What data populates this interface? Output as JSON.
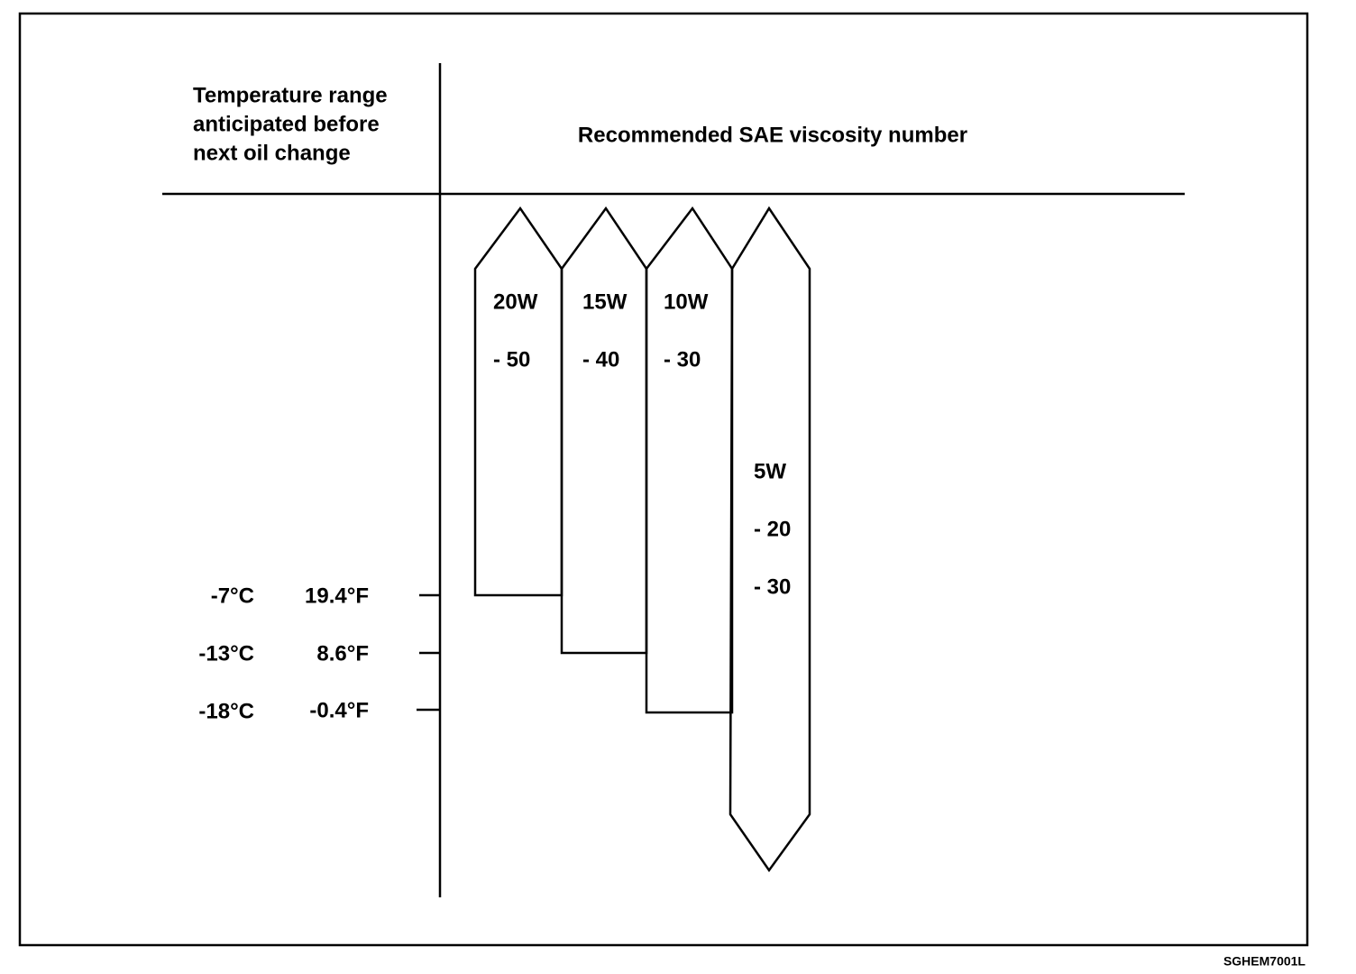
{
  "header": {
    "left": [
      "Temperature range",
      "anticipated before",
      "next oil change"
    ],
    "right": "Recommended SAE viscosity number"
  },
  "temperatures": [
    {
      "celsius": "-7°C",
      "fahrenheit": "19.4°F"
    },
    {
      "celsius": "-13°C",
      "fahrenheit": "8.6°F"
    },
    {
      "celsius": "-18°C",
      "fahrenheit": "-0.4°F"
    }
  ],
  "grades": [
    {
      "lines": [
        "20W",
        "- 50"
      ]
    },
    {
      "lines": [
        "15W",
        "- 40"
      ]
    },
    {
      "lines": [
        "10W",
        "- 30"
      ]
    },
    {
      "lines": [
        "5W",
        "- 20",
        "- 30"
      ]
    }
  ],
  "code": "SGHEM7001L"
}
